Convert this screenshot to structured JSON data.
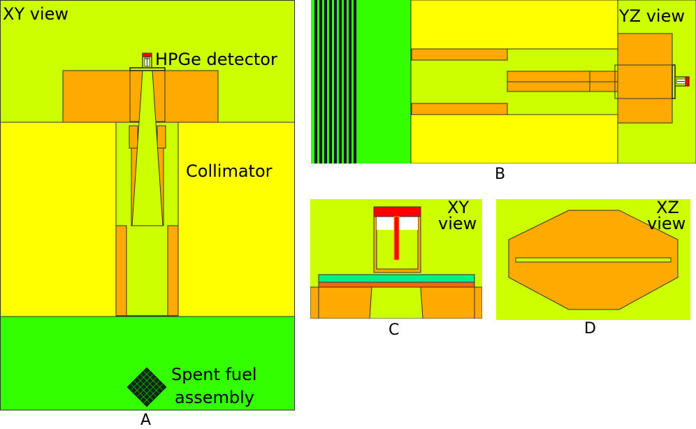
{
  "panels": {
    "a": {
      "letter": "A",
      "view_label": "XY view",
      "detector_label": "HPGe detector",
      "collimator_label": "Collimator",
      "fuel_label_line1": "Spent fuel",
      "fuel_label_line2": "assembly"
    },
    "b": {
      "letter": "B",
      "view_label": "YZ view"
    },
    "c": {
      "letter": "C",
      "view_label_line1": "XY",
      "view_label_line2": "view"
    },
    "d": {
      "letter": "D",
      "view_label_line1": "XZ",
      "view_label_line2": "view"
    }
  },
  "colors": {
    "lime": "#ccff00",
    "yellow": "#ffff00",
    "orange": "#ffaa00",
    "green": "#33ff00",
    "red": "#ff0000",
    "teal": "#00ee88",
    "dark_orange": "#ff6600",
    "white": "#ffffff",
    "dark_blue": "#111133",
    "outline": "#333333"
  }
}
